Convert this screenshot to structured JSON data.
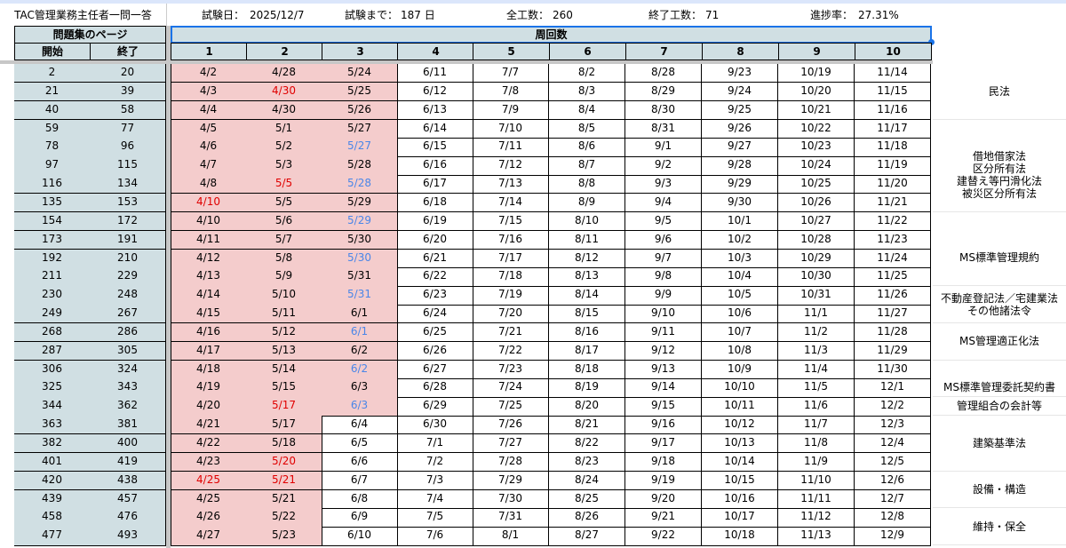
{
  "sheet": {
    "title": "TAC管理業務主任者一問一答",
    "exam_date_label": "試験日：",
    "exam_date": "2025/12/7",
    "until_label": "試験まで：",
    "until_value": "187 日",
    "total_label": "全工数：",
    "total_value": "260",
    "done_label": "終了工数：",
    "done_value": "71",
    "progress_label": "進捗率：",
    "progress_value": "27.31%"
  },
  "headers": {
    "pages": "問題集のページ",
    "round": "周回数",
    "start": "開始",
    "end": "終了",
    "rounds": [
      "1",
      "2",
      "3",
      "4",
      "5",
      "6",
      "7",
      "8",
      "9",
      "10"
    ]
  },
  "rows": [
    {
      "s": "2",
      "e": "20",
      "d": [
        "4/2",
        "4/28",
        "5/24",
        "6/11",
        "7/7",
        "8/2",
        "8/28",
        "9/23",
        "10/19",
        "11/14"
      ]
    },
    {
      "s": "21",
      "e": "39",
      "d": [
        "4/3",
        "4/30",
        "5/25",
        "6/12",
        "7/8",
        "8/3",
        "8/29",
        "9/24",
        "10/20",
        "11/15"
      ]
    },
    {
      "s": "40",
      "e": "58",
      "d": [
        "4/4",
        "4/30",
        "5/26",
        "6/13",
        "7/9",
        "8/4",
        "8/30",
        "9/25",
        "10/21",
        "11/16"
      ]
    },
    {
      "s": "59",
      "e": "77",
      "d": [
        "4/5",
        "5/1",
        "5/27",
        "6/14",
        "7/10",
        "8/5",
        "8/31",
        "9/26",
        "10/22",
        "11/17"
      ]
    },
    {
      "s": "78",
      "e": "96",
      "d": [
        "4/6",
        "5/2",
        "5/27",
        "6/15",
        "7/11",
        "8/6",
        "9/1",
        "9/27",
        "10/23",
        "11/18"
      ]
    },
    {
      "s": "97",
      "e": "115",
      "d": [
        "4/7",
        "5/3",
        "5/28",
        "6/16",
        "7/12",
        "8/7",
        "9/2",
        "9/28",
        "10/24",
        "11/19"
      ]
    },
    {
      "s": "116",
      "e": "134",
      "d": [
        "4/8",
        "5/5",
        "5/28",
        "6/17",
        "7/13",
        "8/8",
        "9/3",
        "9/29",
        "10/25",
        "11/20"
      ]
    },
    {
      "s": "135",
      "e": "153",
      "d": [
        "4/10",
        "5/5",
        "5/29",
        "6/18",
        "7/14",
        "8/9",
        "9/4",
        "9/30",
        "10/26",
        "11/21"
      ]
    },
    {
      "s": "154",
      "e": "172",
      "d": [
        "4/10",
        "5/6",
        "5/29",
        "6/19",
        "7/15",
        "8/10",
        "9/5",
        "10/1",
        "10/27",
        "11/22"
      ]
    },
    {
      "s": "173",
      "e": "191",
      "d": [
        "4/11",
        "5/7",
        "5/30",
        "6/20",
        "7/16",
        "8/11",
        "9/6",
        "10/2",
        "10/28",
        "11/23"
      ]
    },
    {
      "s": "192",
      "e": "210",
      "d": [
        "4/12",
        "5/8",
        "5/30",
        "6/21",
        "7/17",
        "8/12",
        "9/7",
        "10/3",
        "10/29",
        "11/24"
      ]
    },
    {
      "s": "211",
      "e": "229",
      "d": [
        "4/13",
        "5/9",
        "5/31",
        "6/22",
        "7/18",
        "8/13",
        "9/8",
        "10/4",
        "10/30",
        "11/25"
      ]
    },
    {
      "s": "230",
      "e": "248",
      "d": [
        "4/14",
        "5/10",
        "5/31",
        "6/23",
        "7/19",
        "8/14",
        "9/9",
        "10/5",
        "10/31",
        "11/26"
      ]
    },
    {
      "s": "249",
      "e": "267",
      "d": [
        "4/15",
        "5/11",
        "6/1",
        "6/24",
        "7/20",
        "8/15",
        "9/10",
        "10/6",
        "11/1",
        "11/27"
      ]
    },
    {
      "s": "268",
      "e": "286",
      "d": [
        "4/16",
        "5/12",
        "6/1",
        "6/25",
        "7/21",
        "8/16",
        "9/11",
        "10/7",
        "11/2",
        "11/28"
      ]
    },
    {
      "s": "287",
      "e": "305",
      "d": [
        "4/17",
        "5/13",
        "6/2",
        "6/26",
        "7/22",
        "8/17",
        "9/12",
        "10/8",
        "11/3",
        "11/29"
      ]
    },
    {
      "s": "306",
      "e": "324",
      "d": [
        "4/18",
        "5/14",
        "6/2",
        "6/27",
        "7/23",
        "8/18",
        "9/13",
        "10/9",
        "11/4",
        "11/30"
      ]
    },
    {
      "s": "325",
      "e": "343",
      "d": [
        "4/19",
        "5/15",
        "6/3",
        "6/28",
        "7/24",
        "8/19",
        "9/14",
        "10/10",
        "11/5",
        "12/1"
      ]
    },
    {
      "s": "344",
      "e": "362",
      "d": [
        "4/20",
        "5/17",
        "6/3",
        "6/29",
        "7/25",
        "8/20",
        "9/15",
        "10/11",
        "11/6",
        "12/2"
      ]
    },
    {
      "s": "363",
      "e": "381",
      "d": [
        "4/21",
        "5/17",
        "6/4",
        "6/30",
        "7/26",
        "8/21",
        "9/16",
        "10/12",
        "11/7",
        "12/3"
      ]
    },
    {
      "s": "382",
      "e": "400",
      "d": [
        "4/22",
        "5/18",
        "6/5",
        "7/1",
        "7/27",
        "8/22",
        "9/17",
        "10/13",
        "11/8",
        "12/4"
      ]
    },
    {
      "s": "401",
      "e": "419",
      "d": [
        "4/23",
        "5/20",
        "6/6",
        "7/2",
        "7/28",
        "8/23",
        "9/18",
        "10/14",
        "11/9",
        "12/5"
      ]
    },
    {
      "s": "420",
      "e": "438",
      "d": [
        "4/25",
        "5/21",
        "6/7",
        "7/3",
        "7/29",
        "8/24",
        "9/19",
        "10/15",
        "11/10",
        "12/6"
      ]
    },
    {
      "s": "439",
      "e": "457",
      "d": [
        "4/25",
        "5/21",
        "6/8",
        "7/4",
        "7/30",
        "8/25",
        "9/20",
        "10/16",
        "11/11",
        "12/7"
      ]
    },
    {
      "s": "458",
      "e": "476",
      "d": [
        "4/26",
        "5/22",
        "6/9",
        "7/5",
        "7/31",
        "8/26",
        "9/21",
        "10/17",
        "11/12",
        "12/8"
      ]
    },
    {
      "s": "477",
      "e": "493",
      "d": [
        "4/27",
        "5/23",
        "6/10",
        "7/6",
        "8/1",
        "8/27",
        "9/22",
        "10/18",
        "11/13",
        "12/9"
      ]
    }
  ],
  "categories": [
    {
      "label": "民法",
      "rows": [
        0,
        3
      ]
    },
    {
      "label": "借地借家法\n区分所有法\n建替え等円滑化法\n被災区分所有法",
      "rows": [
        4,
        8
      ]
    },
    {
      "label": "MS標準管理規約",
      "rows": [
        9,
        12
      ]
    },
    {
      "label": "不動産登記法／宅建業法\nその他諸法令",
      "rows": [
        12,
        14
      ]
    },
    {
      "label": "MS管理適正化法",
      "rows": [
        14,
        16
      ]
    },
    {
      "label": "MS標準管理委託契約書",
      "rows": [
        17,
        18
      ]
    },
    {
      "label": "管理組合の会計等",
      "rows": [
        18,
        19
      ]
    },
    {
      "label": "建築基準法",
      "rows": [
        19,
        22
      ]
    },
    {
      "label": "設備・構造",
      "rows": [
        22,
        24
      ]
    },
    {
      "label": "維持・保全",
      "rows": [
        24,
        26
      ]
    }
  ],
  "colors": {
    "header_fill": "#d0dfe3",
    "done_fill": "#f4cccc",
    "red_text": "#e00000",
    "blue_text": "#4a86e8",
    "selection": "#1a73e8"
  },
  "highlights": {
    "red": [
      [
        1,
        1
      ],
      [
        6,
        1
      ],
      [
        7,
        0
      ],
      [
        18,
        1
      ],
      [
        21,
        1
      ],
      [
        22,
        0
      ],
      [
        22,
        1
      ]
    ],
    "blue": [
      [
        4,
        2
      ],
      [
        6,
        2
      ],
      [
        8,
        2
      ],
      [
        10,
        2
      ],
      [
        12,
        2
      ],
      [
        14,
        2
      ],
      [
        16,
        2
      ],
      [
        18,
        2
      ]
    ]
  }
}
